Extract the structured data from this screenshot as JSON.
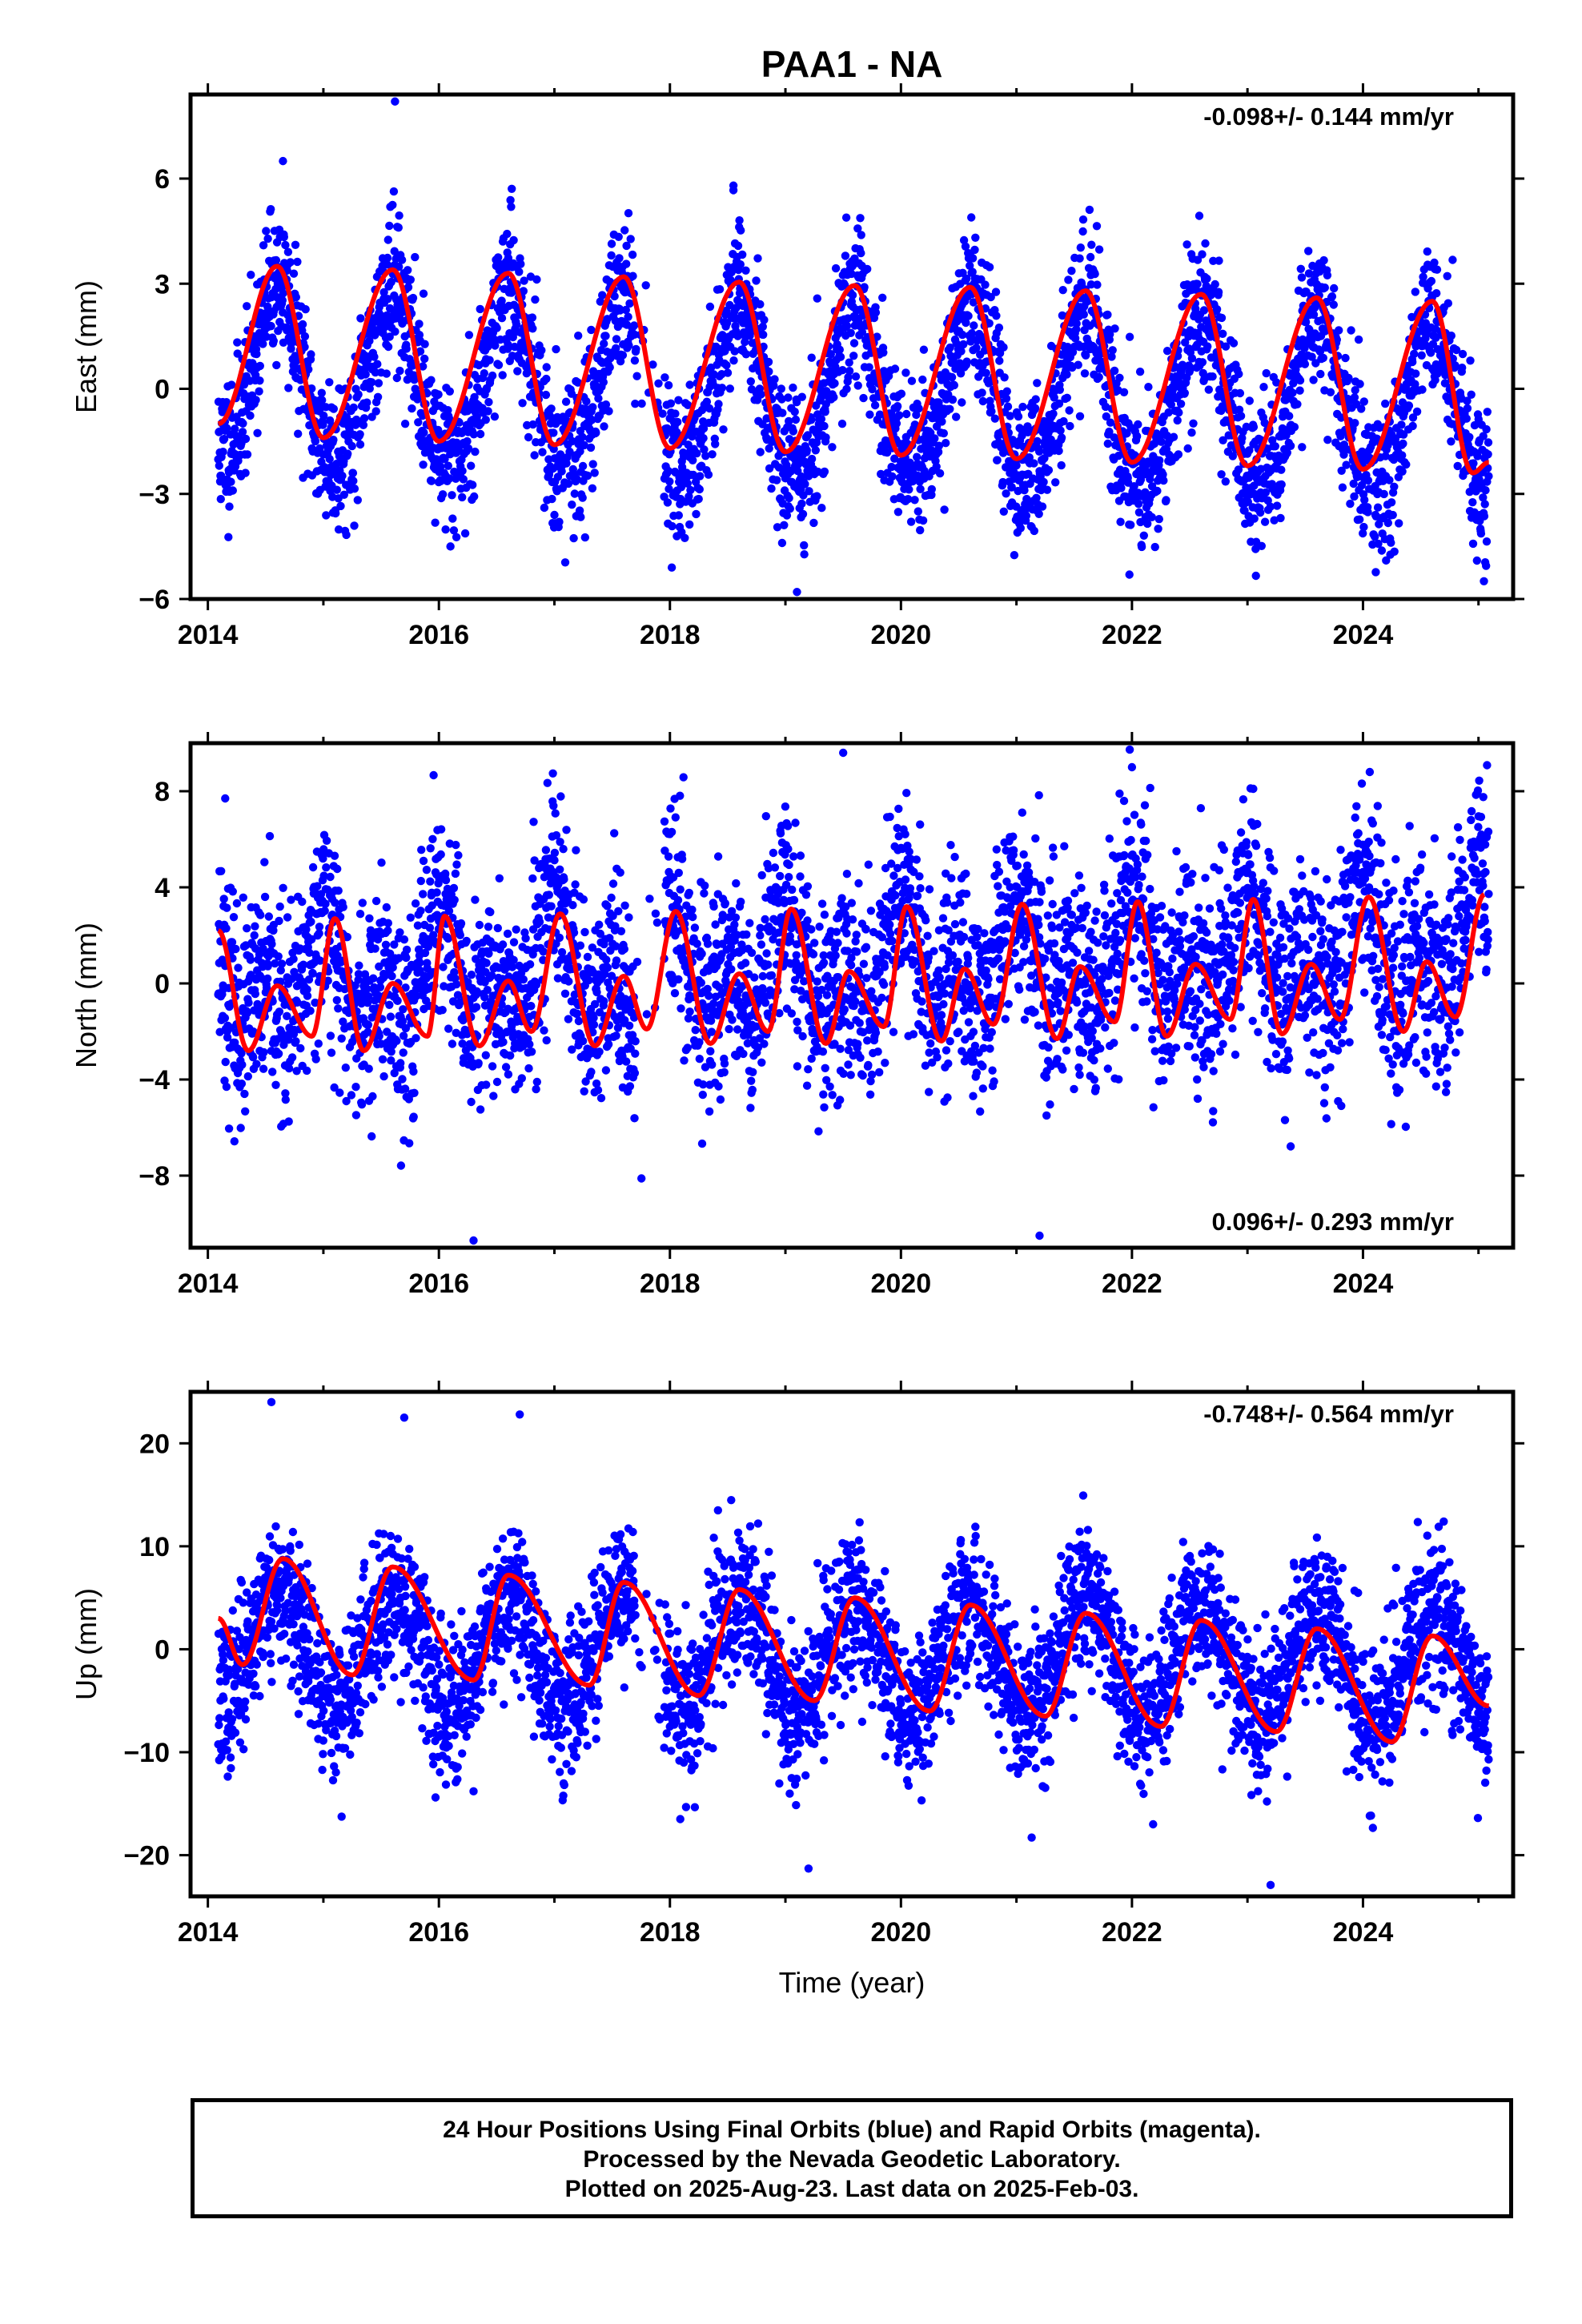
{
  "title": "PAA1 - NA",
  "colors": {
    "observations": "#0000ff",
    "model": "#ff0000",
    "axes": "#000000"
  },
  "x_tick_labels": [
    "2014",
    "2016",
    "2018",
    "2020",
    "2022",
    "2024"
  ],
  "x_axis_label": "Time (year)",
  "footer": {
    "line1": "24 Hour Positions Using Final Orbits (blue) and Rapid Orbits (magenta).",
    "line2": "Processed by the Nevada Geodetic Laboratory.",
    "line3": "Plotted on 2025-Aug-23. Last data on 2025-Feb-03."
  },
  "chart_data": [
    {
      "type": "scatter",
      "ylabel": "East (mm)",
      "rate_label": "-0.098+/- 0.144 mm/yr",
      "rate_position": "top-right",
      "xlim": [
        2013.85,
        2025.3
      ],
      "ylim": [
        -6,
        8.4
      ],
      "x_ticks": [
        2014,
        2016,
        2018,
        2020,
        2022,
        2024
      ],
      "y_ticks": [
        -6,
        -3,
        0,
        3,
        6
      ],
      "y_tick_labels": [
        "−6",
        "−3",
        "0",
        "3",
        "6"
      ],
      "data_range": [
        2014.09,
        2025.09
      ],
      "series": [
        {
          "kind": "daily positions",
          "amplitude": 2.4,
          "phase_peak": 0.6,
          "semiannual": 0.3,
          "noise_sd": 1.05,
          "seed": 11,
          "outliers": [
            [
              2015.62,
              8.2
            ],
            [
              2014.65,
              6.5
            ],
            [
              2019.1,
              -5.8
            ],
            [
              2018.55,
              5.8
            ],
            [
              2024.2,
              -4.9
            ],
            [
              2016.1,
              -4.5
            ]
          ]
        },
        {
          "kind": "seasonal model",
          "minima": [
            [
              2014.09,
              -1.0
            ],
            [
              2015.0,
              -1.4
            ],
            [
              2016.0,
              -1.5
            ],
            [
              2017.0,
              -1.6
            ],
            [
              2018.0,
              -1.7
            ],
            [
              2019.0,
              -1.8
            ],
            [
              2020.0,
              -1.9
            ],
            [
              2021.0,
              -2.0
            ],
            [
              2022.0,
              -2.1
            ],
            [
              2023.0,
              -2.2
            ],
            [
              2024.0,
              -2.3
            ],
            [
              2024.95,
              -2.4
            ],
            [
              2025.09,
              -2.1
            ]
          ],
          "maxima": [
            [
              2014.6,
              3.5
            ],
            [
              2015.6,
              3.4
            ],
            [
              2016.6,
              3.3
            ],
            [
              2017.6,
              3.2
            ],
            [
              2018.6,
              3.05
            ],
            [
              2019.6,
              2.95
            ],
            [
              2020.6,
              2.9
            ],
            [
              2021.6,
              2.8
            ],
            [
              2022.6,
              2.7
            ],
            [
              2023.6,
              2.6
            ],
            [
              2024.6,
              2.5
            ]
          ]
        }
      ]
    },
    {
      "type": "scatter",
      "ylabel": "North (mm)",
      "rate_label": "0.096+/- 0.293 mm/yr",
      "rate_position": "bottom-right",
      "xlim": [
        2013.85,
        2025.3
      ],
      "ylim": [
        -11,
        10
      ],
      "x_ticks": [
        2014,
        2016,
        2018,
        2020,
        2022,
        2024
      ],
      "y_ticks": [
        -8,
        -4,
        0,
        4,
        8
      ],
      "y_tick_labels": [
        "−8",
        "−4",
        "0",
        "4",
        "8"
      ],
      "data_range": [
        2014.09,
        2025.09
      ],
      "series": [
        {
          "kind": "daily positions",
          "amplitude": 1.6,
          "phase_peak": 0.0,
          "semiannual": 1.4,
          "noise_sd": 2.1,
          "seed": 23,
          "outliers": [
            [
              2016.3,
              -10.7
            ],
            [
              2019.5,
              9.6
            ],
            [
              2022.0,
              9.0
            ],
            [
              2021.2,
              -10.5
            ],
            [
              2014.15,
              7.7
            ],
            [
              2023.05,
              8.1
            ]
          ]
        },
        {
          "kind": "seasonal model",
          "minima": [
            [
              2014.35,
              -2.8
            ],
            [
              2014.9,
              -2.2
            ],
            [
              2015.35,
              -2.8
            ],
            [
              2015.9,
              -2.2
            ],
            [
              2016.35,
              -2.6
            ],
            [
              2016.8,
              -2.0
            ],
            [
              2017.35,
              -2.6
            ],
            [
              2017.8,
              -1.9
            ],
            [
              2018.35,
              -2.5
            ],
            [
              2018.85,
              -2.0
            ],
            [
              2019.35,
              -2.5
            ],
            [
              2019.85,
              -1.8
            ],
            [
              2020.35,
              -2.4
            ],
            [
              2020.8,
              -1.7
            ],
            [
              2021.35,
              -2.3
            ],
            [
              2021.85,
              -1.6
            ],
            [
              2022.3,
              -2.2
            ],
            [
              2022.85,
              -1.5
            ],
            [
              2023.3,
              -2.1
            ],
            [
              2023.8,
              -1.5
            ],
            [
              2024.35,
              -2.0
            ],
            [
              2024.8,
              -1.4
            ]
          ],
          "maxima": [
            [
              2014.09,
              2.2
            ],
            [
              2014.6,
              -0.1
            ],
            [
              2015.1,
              2.7
            ],
            [
              2015.6,
              0.0
            ],
            [
              2016.05,
              2.8
            ],
            [
              2016.6,
              0.1
            ],
            [
              2017.05,
              2.9
            ],
            [
              2017.6,
              0.3
            ],
            [
              2018.05,
              3.0
            ],
            [
              2018.6,
              0.4
            ],
            [
              2019.05,
              3.1
            ],
            [
              2019.55,
              0.5
            ],
            [
              2020.05,
              3.2
            ],
            [
              2020.55,
              0.6
            ],
            [
              2021.05,
              3.3
            ],
            [
              2021.55,
              0.7
            ],
            [
              2022.05,
              3.4
            ],
            [
              2022.55,
              0.8
            ],
            [
              2023.05,
              3.5
            ],
            [
              2023.55,
              0.8
            ],
            [
              2024.05,
              3.6
            ],
            [
              2024.55,
              0.9
            ],
            [
              2025.05,
              3.7
            ]
          ]
        }
      ]
    },
    {
      "type": "scatter",
      "ylabel": "Up (mm)",
      "rate_label": "-0.748+/- 0.564 mm/yr",
      "rate_position": "top-right",
      "xlim": [
        2013.85,
        2025.3
      ],
      "ylim": [
        -24,
        25
      ],
      "x_ticks": [
        2014,
        2016,
        2018,
        2020,
        2022,
        2024
      ],
      "y_ticks": [
        -20,
        -10,
        0,
        10,
        20
      ],
      "y_tick_labels": [
        "−20",
        "−10",
        "0",
        "10",
        "20"
      ],
      "data_range": [
        2014.09,
        2025.09
      ],
      "series": [
        {
          "kind": "daily positions",
          "amplitude": 5.5,
          "phase_peak": 0.6,
          "semiannual": 0.0,
          "noise_sd": 3.6,
          "seed": 37,
          "outliers": [
            [
              2014.55,
              24.0
            ],
            [
              2016.7,
              22.8
            ],
            [
              2019.2,
              -21.3
            ],
            [
              2023.2,
              -22.9
            ],
            [
              2015.7,
              22.5
            ],
            [
              2016.3,
              -13.8
            ]
          ]
        },
        {
          "kind": "seasonal model",
          "minima": [
            [
              2014.3,
              -1.5
            ],
            [
              2015.25,
              -2.5
            ],
            [
              2016.3,
              -3.0
            ],
            [
              2017.3,
              -3.5
            ],
            [
              2018.25,
              -4.5
            ],
            [
              2019.25,
              -5.0
            ],
            [
              2020.25,
              -6.0
            ],
            [
              2021.25,
              -6.5
            ],
            [
              2022.25,
              -7.5
            ],
            [
              2023.25,
              -8.0
            ],
            [
              2024.25,
              -9.0
            ],
            [
              2025.09,
              -5.5
            ]
          ],
          "maxima": [
            [
              2014.09,
              3.0
            ],
            [
              2014.65,
              8.8
            ],
            [
              2015.6,
              8.0
            ],
            [
              2016.6,
              7.2
            ],
            [
              2017.6,
              6.5
            ],
            [
              2018.6,
              5.8
            ],
            [
              2019.6,
              5.0
            ],
            [
              2020.6,
              4.3
            ],
            [
              2021.6,
              3.5
            ],
            [
              2022.6,
              2.8
            ],
            [
              2023.6,
              2.0
            ],
            [
              2024.6,
              1.3
            ]
          ]
        }
      ]
    }
  ]
}
